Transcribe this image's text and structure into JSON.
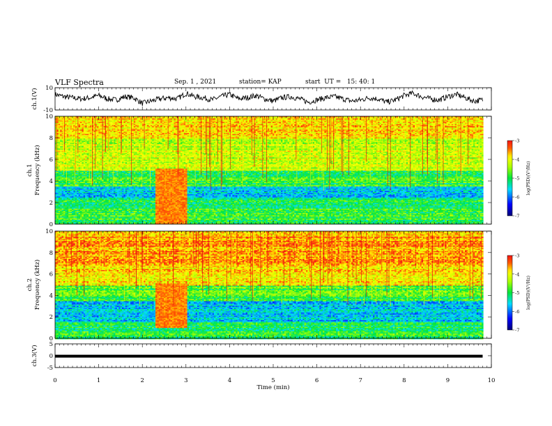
{
  "header": {
    "title": "VLF Spectra",
    "date": "Sep. 1 , 2021",
    "station": "station= KAP",
    "start_ut": "start  UT =   15: 40: 1"
  },
  "chart_data": [
    {
      "type": "line",
      "title": "",
      "ylabel": "ch.1(V)",
      "xlim": [
        0,
        10
      ],
      "ylim": [
        -10,
        10
      ],
      "yticks": [
        "10",
        "-10"
      ],
      "note": "noisy time series of channel 1 voltage",
      "x_end": 9.8,
      "series": [
        {
          "x": [
            0,
            0.2,
            0.4,
            0.6,
            0.8,
            1.0,
            1.2,
            1.4,
            1.6,
            1.8,
            2.0,
            2.2,
            2.4,
            2.6,
            2.8,
            3.0,
            3.2,
            3.4,
            3.6,
            3.8,
            4.0,
            4.2,
            4.4,
            4.6,
            4.8,
            5.0,
            5.2,
            5.4,
            5.6,
            5.8,
            6.0,
            6.2,
            6.4,
            6.6,
            6.8,
            7.0,
            7.2,
            7.4,
            7.6,
            7.8,
            8.0,
            8.2,
            8.4,
            8.6,
            8.8,
            9.0,
            9.2,
            9.4,
            9.6,
            9.8
          ],
          "y": [
            4,
            2,
            1,
            0,
            1,
            3,
            0,
            -1,
            2,
            1,
            -4,
            -2,
            0,
            1,
            0,
            5,
            2,
            1,
            -1,
            2,
            4,
            0,
            1,
            3,
            0,
            -2,
            1,
            2,
            0,
            -3,
            -1,
            1,
            2,
            0,
            -2,
            -1,
            1,
            0,
            -3,
            -1,
            3,
            5,
            2,
            0,
            -1,
            2,
            4,
            1,
            -2,
            -1
          ]
        }
      ]
    },
    {
      "type": "heatmap",
      "title": "",
      "ylabel": "ch.1 Frequency (kHz)",
      "xlim": [
        0,
        10
      ],
      "ylim": [
        0,
        10
      ],
      "yticks": [
        "0",
        "2",
        "4",
        "6",
        "8",
        "10"
      ],
      "colorbar": {
        "label": "log(PSD)(V²/Hz)",
        "range": [
          -7,
          -3
        ],
        "ticks": [
          "-3",
          "-4",
          "-5",
          "-6",
          "-7"
        ]
      },
      "x_end": 9.8,
      "bands": [
        {
          "f_min": 0,
          "f_max": 1.5,
          "logpsd": -4.9
        },
        {
          "f_min": 1.5,
          "f_max": 2.5,
          "logpsd": -5.1
        },
        {
          "f_min": 2.5,
          "f_max": 3.5,
          "logpsd": -5.6
        },
        {
          "f_min": 3.5,
          "f_max": 5.0,
          "logpsd": -4.9
        },
        {
          "f_min": 5.0,
          "f_max": 8.0,
          "logpsd": -4.2
        },
        {
          "f_min": 8.0,
          "f_max": 10,
          "logpsd": -3.8
        }
      ],
      "events": [
        {
          "t_start": 2.3,
          "t_end": 3.0,
          "f_min": 0,
          "f_max": 5.2,
          "logpsd": -3.5
        }
      ]
    },
    {
      "type": "heatmap",
      "title": "",
      "ylabel": "ch.2 Frequency (kHz)",
      "xlim": [
        0,
        10
      ],
      "ylim": [
        0,
        10
      ],
      "yticks": [
        "0",
        "2",
        "4",
        "6",
        "8",
        "10"
      ],
      "colorbar": {
        "label": "log(PSD)(V²/Hz)",
        "range": [
          -7,
          -3
        ],
        "ticks": [
          "-3",
          "-4",
          "-5",
          "-6",
          "-7"
        ]
      },
      "x_end": 9.8,
      "bands": [
        {
          "f_min": 0,
          "f_max": 1.5,
          "logpsd": -5.0
        },
        {
          "f_min": 1.5,
          "f_max": 3.5,
          "logpsd": -5.6
        },
        {
          "f_min": 3.5,
          "f_max": 5.0,
          "logpsd": -4.8
        },
        {
          "f_min": 5.0,
          "f_max": 7.0,
          "logpsd": -3.9
        },
        {
          "f_min": 7.0,
          "f_max": 10,
          "logpsd": -3.6
        }
      ],
      "events": [
        {
          "t_start": 2.3,
          "t_end": 3.0,
          "f_min": 1.0,
          "f_max": 5.2,
          "logpsd": -3.5
        }
      ]
    },
    {
      "type": "line",
      "title": "",
      "ylabel": "ch.3(V)",
      "xlabel": "Time  (min)",
      "xlim": [
        0,
        10
      ],
      "ylim": [
        -5,
        5
      ],
      "yticks": [
        "5",
        "0",
        "-5"
      ],
      "xticks": [
        "0",
        "1",
        "2",
        "3",
        "4",
        "5",
        "6",
        "7",
        "8",
        "9",
        "10"
      ],
      "x_end": 9.8,
      "series": [
        {
          "x": [
            0,
            9.8
          ],
          "y": [
            -0.2,
            -0.2
          ],
          "band_width": 0.6
        }
      ]
    }
  ]
}
